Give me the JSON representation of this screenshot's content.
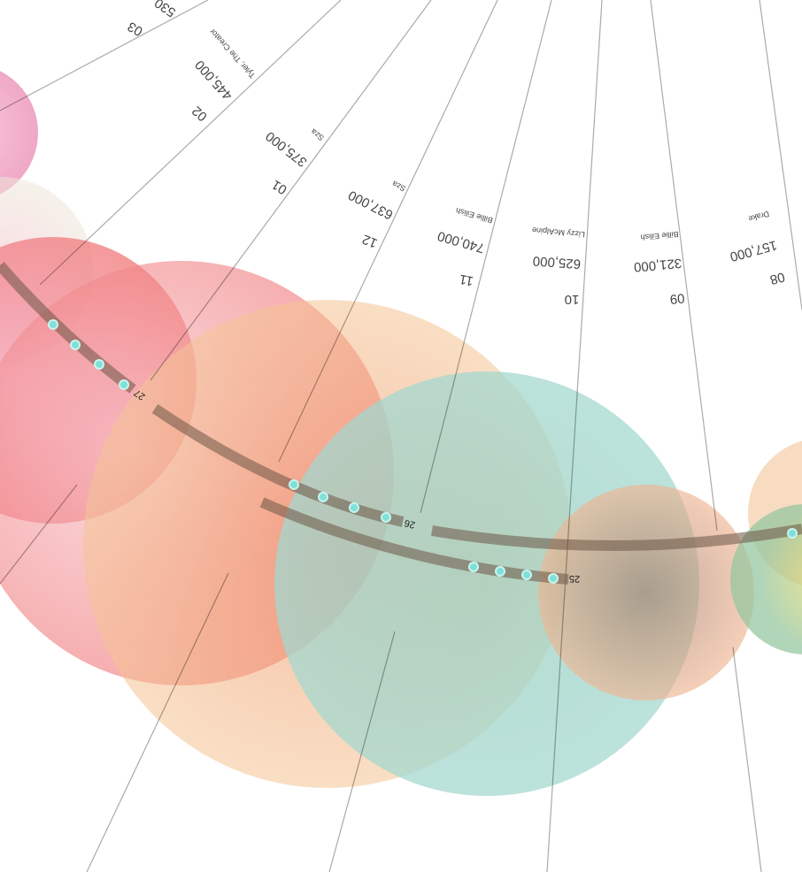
{
  "items": [
    {
      "month": "03",
      "streams": "530"
    },
    {
      "artist": "Tyler, The Creator",
      "streams": "445,000",
      "month": "02"
    },
    {
      "artist": "Sza",
      "streams": "375,000",
      "month": "01"
    },
    {
      "artist": "Sza",
      "streams": "637,000",
      "month": "12"
    },
    {
      "artist": "Billie Eilish",
      "streams": "740,000",
      "month": "11"
    },
    {
      "artist": "Lizzy McAlpine",
      "streams": "625,000",
      "month": "10"
    },
    {
      "artist": "Billie Eilish",
      "streams": "321,000",
      "month": "09"
    },
    {
      "artist": "Drake",
      "streams": "157,000",
      "month": "08"
    }
  ],
  "years": [
    "27",
    "26",
    "25"
  ]
}
